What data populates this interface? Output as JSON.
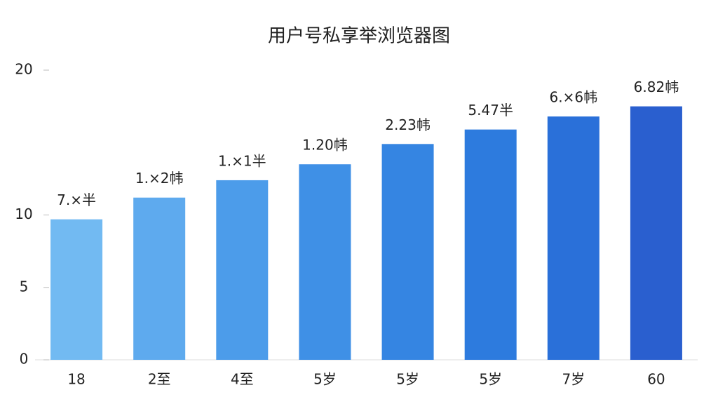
{
  "chart_data": {
    "type": "bar",
    "title": "用户号私享举浏览器图",
    "categories": [
      "18",
      "2至",
      "4至",
      "5岁",
      "5岁",
      "5岁",
      "7岁",
      "60"
    ],
    "values": [
      9.7,
      11.2,
      12.4,
      13.5,
      14.9,
      15.9,
      16.8,
      17.5
    ],
    "annotations": [
      "7.×半",
      "1.×2帏",
      "1.×1半",
      "1.20帏",
      "2.23帏",
      "5.47半",
      "6.×6帏",
      "6.82帏"
    ],
    "colors": [
      "#72baf2",
      "#5eaaee",
      "#4c9cea",
      "#3f90e6",
      "#3585e2",
      "#2d7bde",
      "#2a70d9",
      "#2a5fcf"
    ],
    "ylim": [
      0,
      20
    ],
    "yticks": [
      0,
      5,
      10,
      20
    ],
    "grid": false
  }
}
